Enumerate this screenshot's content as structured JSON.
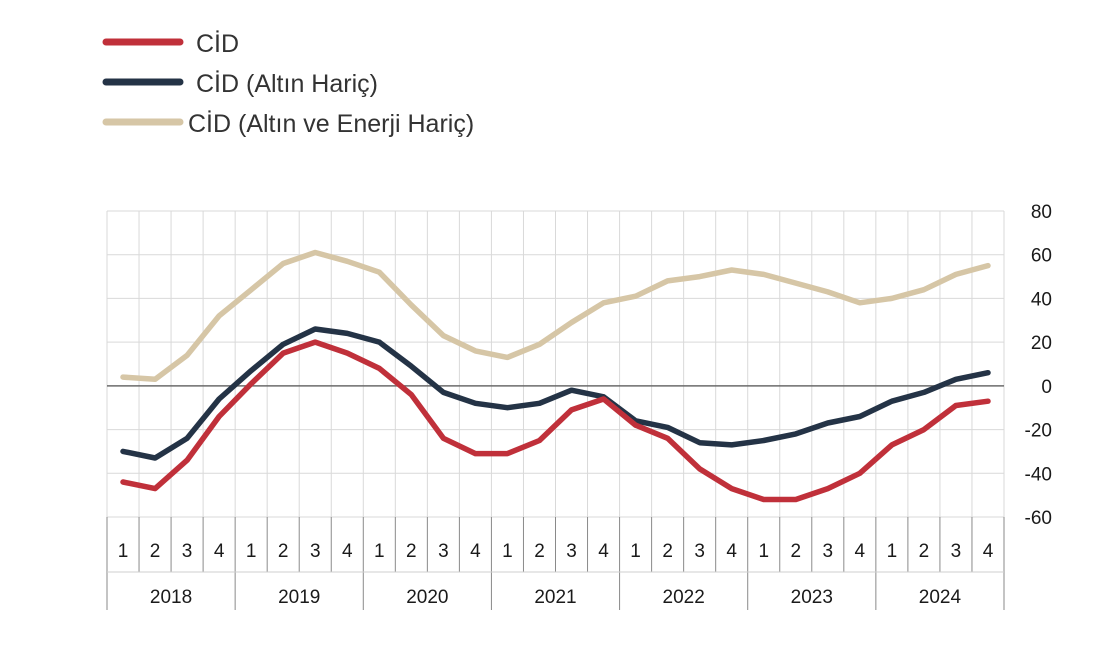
{
  "chart_data": {
    "type": "line",
    "x_quarters": [
      "1",
      "2",
      "3",
      "4",
      "1",
      "2",
      "3",
      "4",
      "1",
      "2",
      "3",
      "4",
      "1",
      "2",
      "3",
      "4",
      "1",
      "2",
      "3",
      "4",
      "1",
      "2",
      "3",
      "4",
      "1",
      "2",
      "3",
      "4"
    ],
    "years": [
      "2018",
      "2019",
      "2020",
      "2021",
      "2022",
      "2023",
      "2024"
    ],
    "ylim": [
      -60,
      80
    ],
    "y_ticks": [
      "80",
      "60",
      "40",
      "20",
      "0",
      "-20",
      "-40",
      "-60"
    ],
    "y_axis_side": "right",
    "grid": true,
    "legend_position": "top-left",
    "series": [
      {
        "name": "CİD",
        "color": "#c0303a",
        "values": [
          -44,
          -47,
          -34,
          -14,
          1,
          15,
          20,
          15,
          8,
          -4,
          -24,
          -31,
          -31,
          -25,
          -11,
          -6,
          -18,
          -24,
          -38,
          -47,
          -52,
          -52,
          -47,
          -40,
          -27,
          -20,
          -9,
          -7
        ]
      },
      {
        "name": "CİD (Altın Hariç)",
        "color": "#243346",
        "values": [
          -30,
          -33,
          -24,
          -6,
          7,
          19,
          26,
          24,
          20,
          9,
          -3,
          -8,
          -10,
          -8,
          -2,
          -5,
          -16,
          -19,
          -26,
          -27,
          -25,
          -22,
          -17,
          -14,
          -7,
          -3,
          3,
          6
        ]
      },
      {
        "name": "CİD (Altın ve Enerji Hariç)",
        "color": "#d6c6a6",
        "values": [
          4,
          3,
          14,
          32,
          44,
          56,
          61,
          57,
          52,
          37,
          23,
          16,
          13,
          19,
          29,
          38,
          41,
          48,
          50,
          53,
          51,
          47,
          43,
          38,
          40,
          44,
          51,
          55
        ]
      }
    ]
  }
}
